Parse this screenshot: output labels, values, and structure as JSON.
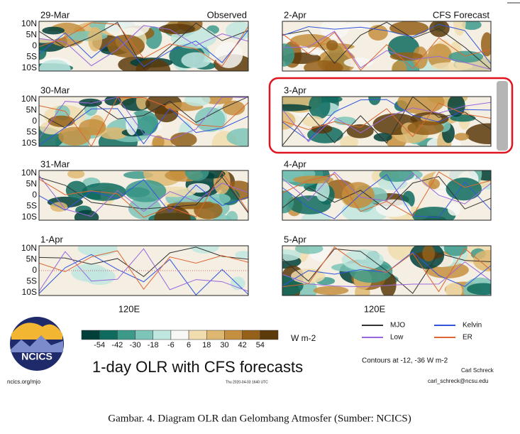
{
  "figure": {
    "panels": [
      {
        "date": "29-Mar",
        "label": "Observed"
      },
      {
        "date": "30-Mar"
      },
      {
        "date": "31-Mar"
      },
      {
        "date": "1-Apr"
      },
      {
        "date": "2-Apr",
        "label": "CFS Forecast"
      },
      {
        "date": "3-Apr"
      },
      {
        "date": "4-Apr"
      },
      {
        "date": "5-Apr"
      }
    ],
    "lat_labels": [
      "10N",
      "5N",
      "0",
      "5S",
      "10S"
    ],
    "lon_label": "120E",
    "colorbar": {
      "ticks": [
        -54,
        -42,
        -30,
        -18,
        -6,
        6,
        18,
        30,
        42,
        54
      ],
      "unit": "W m-2",
      "colors": [
        "#00403a",
        "#0e6b5e",
        "#3d9a8b",
        "#7cc5b8",
        "#bfe6df",
        "#f7f7f5",
        "#f0dcae",
        "#deb872",
        "#c48f3e",
        "#94601a",
        "#5c3a0a"
      ]
    },
    "logo": "NCICS",
    "title": "1-day OLR with CFS forecasts",
    "url": "ncics.org/mjo",
    "timestamp": "Thu 2020-04-03 1640 UTC",
    "legend": [
      {
        "name": "MJO",
        "color": "#333333"
      },
      {
        "name": "Kelvin",
        "color": "#3355dd"
      },
      {
        "name": "Low",
        "color": "#9966dd"
      },
      {
        "name": "ER",
        "color": "#dd6633"
      }
    ],
    "contours": "Contours at -12, -36 W m-2",
    "author": "Carl Schreck",
    "email": "carl_schreck@ncsu.edu"
  },
  "caption": "Gambar. 4. Diagram OLR dan Gelombang Atmosfer (Sumber: NCICS)"
}
